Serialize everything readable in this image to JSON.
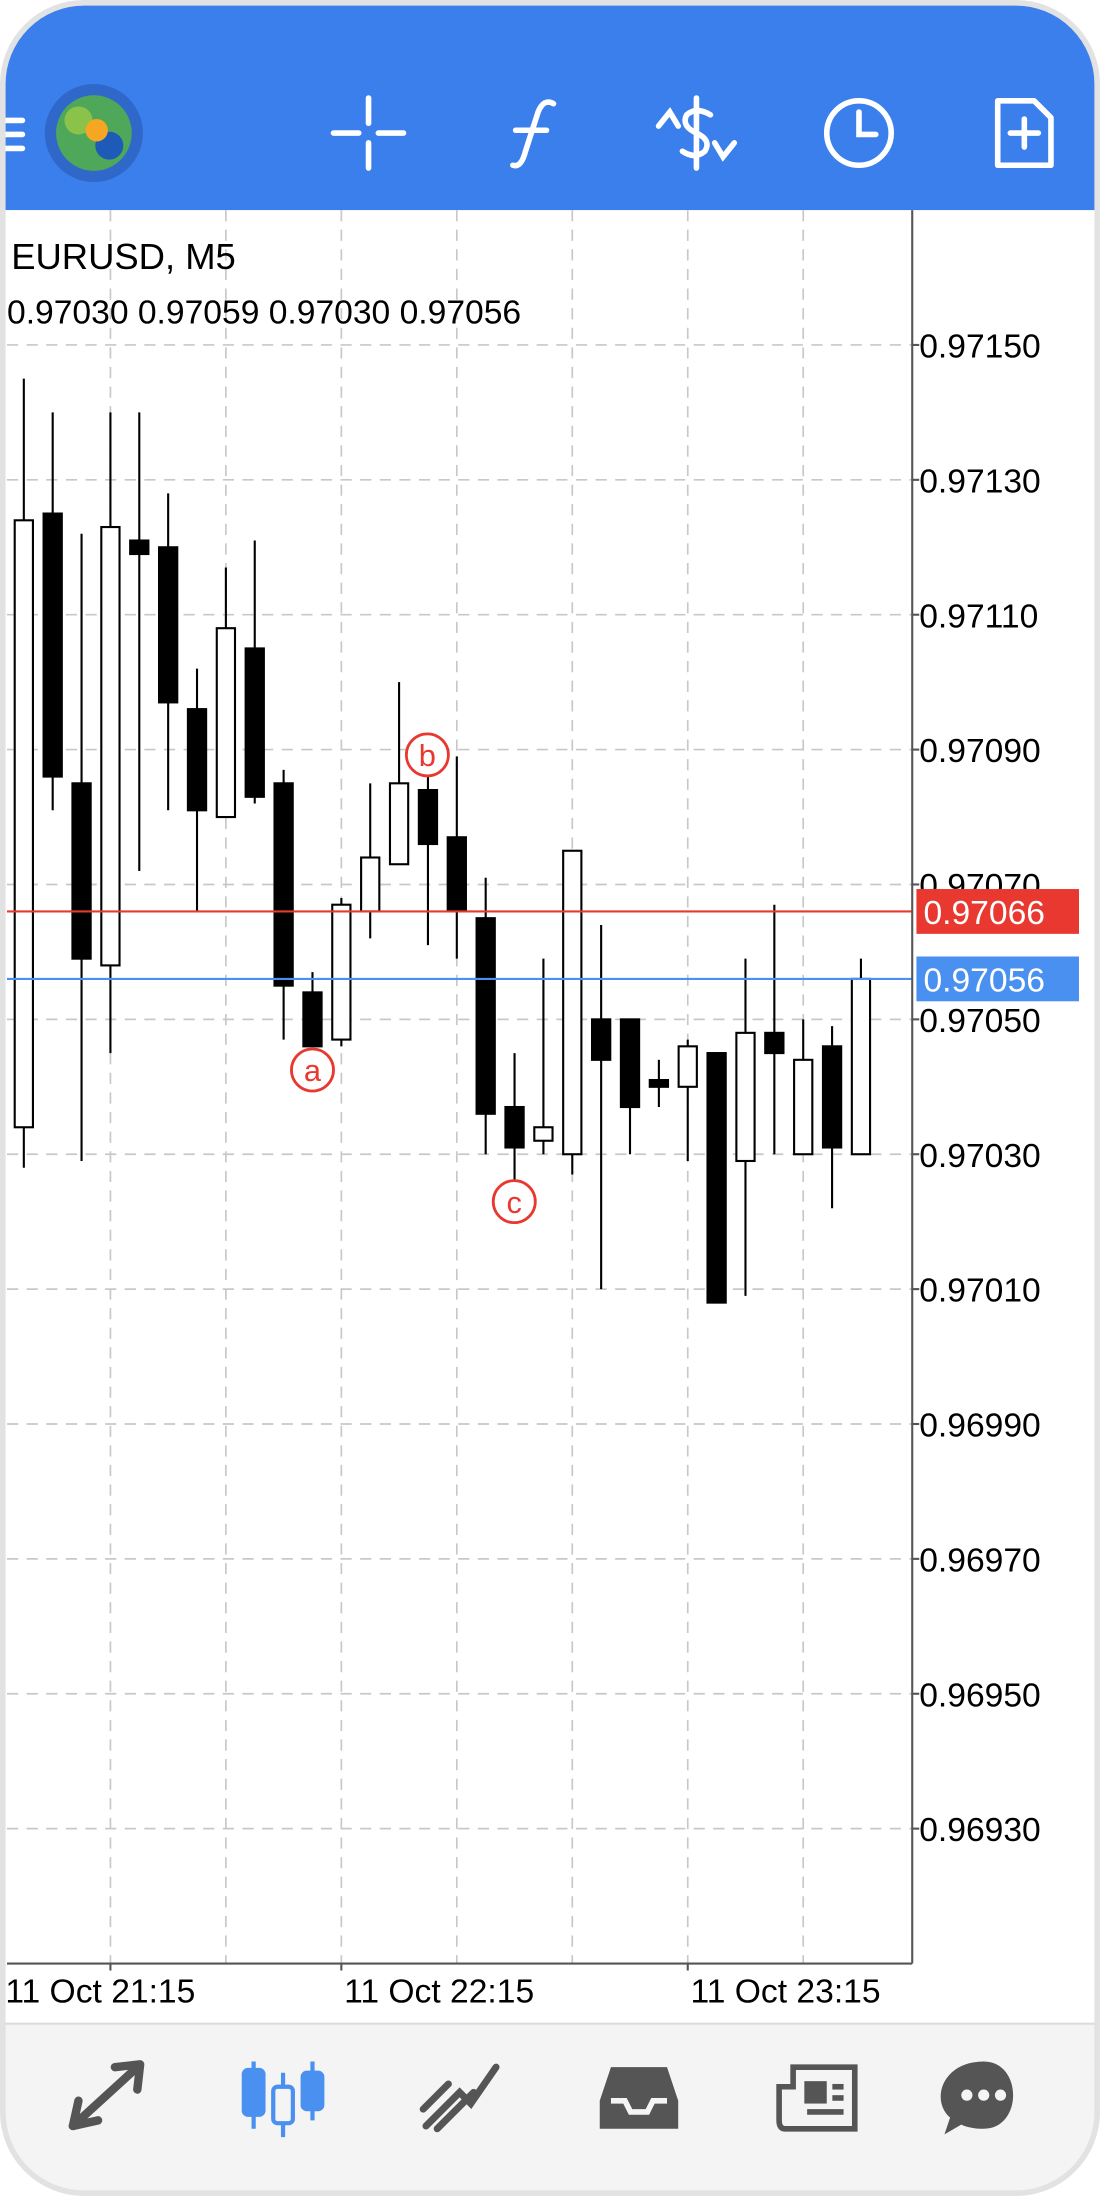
{
  "chart_data": {
    "type": "candlestick",
    "title": "EURUSD, M5",
    "subtitle": "0.97030 0.97059 0.97030 0.97056",
    "categories": [
      null,
      null,
      null,
      "11 Oct 21:15",
      null,
      null,
      null,
      null,
      null,
      null,
      null,
      "11 Oct 22:15",
      null,
      null,
      null,
      null,
      null,
      null,
      null,
      null,
      null,
      null,
      null,
      "11 Oct 23:15",
      null,
      null,
      null,
      null,
      null,
      null
    ],
    "open": [
      0.97034,
      0.97125,
      0.97085,
      0.97058,
      0.97121,
      0.9712,
      0.97096,
      0.9708,
      0.97105,
      0.97085,
      0.97054,
      0.97047,
      0.97066,
      0.97073,
      0.97084,
      0.97077,
      0.97065,
      0.97037,
      0.97032,
      0.9703,
      0.9705,
      0.9705,
      0.97041,
      0.9704,
      0.97045,
      0.97029,
      0.97048,
      0.9703,
      0.97046,
      0.9703
    ],
    "high": [
      0.97145,
      0.9714,
      0.97122,
      0.9714,
      0.9714,
      0.97128,
      0.97102,
      0.97117,
      0.97121,
      0.97087,
      0.97057,
      0.97068,
      0.97085,
      0.971,
      0.97087,
      0.97089,
      0.97071,
      0.97045,
      0.97059,
      0.97075,
      0.97064,
      0.9705,
      0.97044,
      0.97047,
      0.97045,
      0.97059,
      0.97067,
      0.9705,
      0.97049,
      0.97059
    ],
    "low": [
      0.97028,
      0.97081,
      0.97029,
      0.97045,
      0.97072,
      0.97081,
      0.97066,
      0.9708,
      0.97082,
      0.97047,
      0.97046,
      0.97046,
      0.97062,
      0.97073,
      0.97061,
      0.97059,
      0.9703,
      0.97026,
      0.9703,
      0.97027,
      0.9701,
      0.9703,
      0.97037,
      0.97029,
      0.97008,
      0.97009,
      0.9703,
      0.9703,
      0.97022,
      0.9703
    ],
    "close": [
      0.97124,
      0.97086,
      0.97059,
      0.97123,
      0.97119,
      0.97097,
      0.97081,
      0.97108,
      0.97083,
      0.97055,
      0.97046,
      0.97067,
      0.97074,
      0.97085,
      0.97076,
      0.97066,
      0.97036,
      0.97031,
      0.97034,
      0.97075,
      0.97044,
      0.97037,
      0.9704,
      0.97046,
      0.97008,
      0.97048,
      0.97045,
      0.97044,
      0.97031,
      0.97056
    ],
    "ylim": [
      0.9691,
      0.9717
    ],
    "yticks": [
      {
        "value": 0.9693,
        "label": "0.96930"
      },
      {
        "value": 0.9695,
        "label": "0.96950"
      },
      {
        "value": 0.9697,
        "label": "0.96970"
      },
      {
        "value": 0.9699,
        "label": "0.96990"
      },
      {
        "value": 0.9701,
        "label": "0.97010"
      },
      {
        "value": 0.9703,
        "label": "0.97030"
      },
      {
        "value": 0.9705,
        "label": "0.97050"
      },
      {
        "value": 0.9707,
        "label": "0.97070"
      },
      {
        "value": 0.9709,
        "label": "0.97090"
      },
      {
        "value": 0.9711,
        "label": "0.97110"
      },
      {
        "value": 0.9713,
        "label": "0.97130"
      },
      {
        "value": 0.9715,
        "label": "0.97150"
      }
    ],
    "grid": true,
    "bull_color": "#ffffff",
    "bear_color": "#000000",
    "price_lines": [
      {
        "value": 0.97066,
        "color": "#e8382f"
      },
      {
        "value": 0.97056,
        "color": "#4a90f0"
      }
    ],
    "annotations": [
      {
        "text": "a"
      },
      {
        "text": "b"
      },
      {
        "text": "c"
      }
    ]
  }
}
